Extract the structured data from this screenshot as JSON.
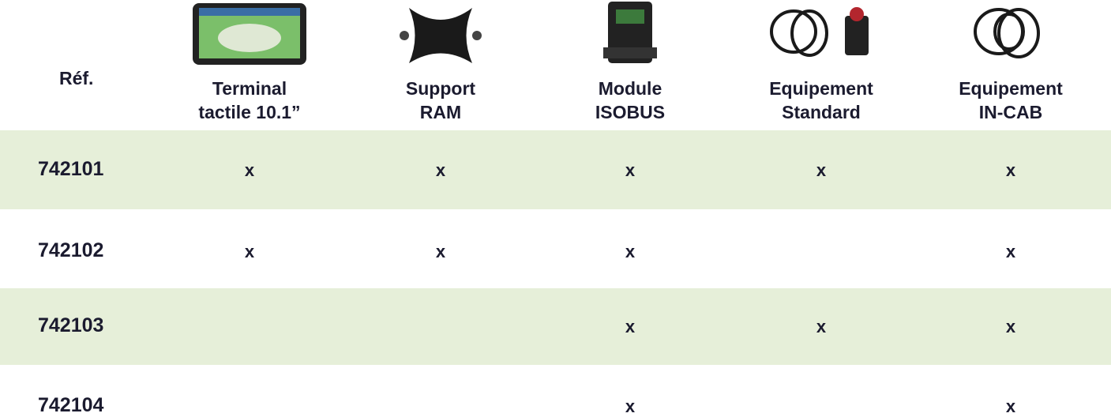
{
  "table": {
    "ref_header": "Réf.",
    "columns": [
      {
        "lines": [
          "Terminal",
          "tactile 10.1”"
        ]
      },
      {
        "lines": [
          "Support",
          "RAM"
        ]
      },
      {
        "lines": [
          "Module",
          "ISOBUS"
        ]
      },
      {
        "lines": [
          "Equipement",
          "Standard"
        ]
      },
      {
        "lines": [
          "Equipement",
          "IN-CAB"
        ]
      }
    ],
    "rows": [
      {
        "ref": "742101",
        "cells": [
          "x",
          "x",
          "x",
          "x",
          "x"
        ]
      },
      {
        "ref": "742102",
        "cells": [
          "x",
          "x",
          "x",
          null,
          "x"
        ]
      },
      {
        "ref": "742103",
        "cells": [
          null,
          null,
          "x",
          "x",
          "x"
        ]
      },
      {
        "ref": "742104",
        "cells": [
          null,
          null,
          "x",
          null,
          "x"
        ]
      }
    ]
  }
}
